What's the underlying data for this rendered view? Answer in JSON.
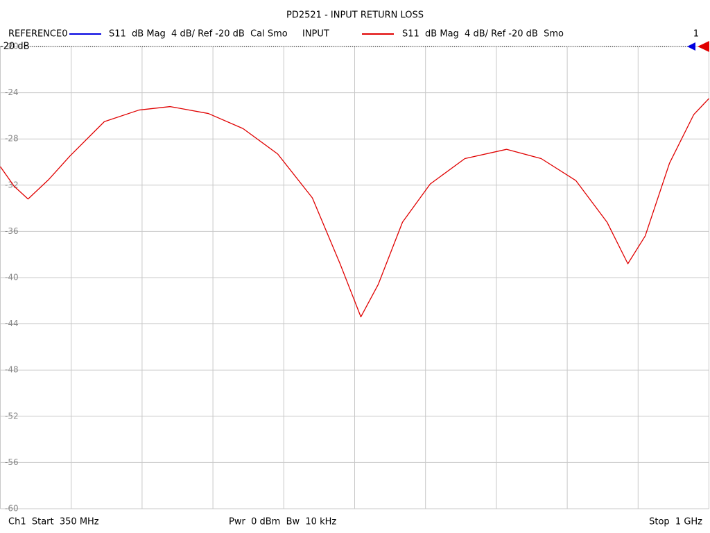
{
  "chart_data": {
    "type": "line",
    "title": "PD2521 - INPUT RETURN LOSS",
    "reference_trace": {
      "name": "REFERENCE0",
      "color": "#0000e0",
      "description": "S11  dB Mag  4 dB/ Ref -20 dB  Cal Smo"
    },
    "series": [
      {
        "name": "INPUT",
        "color": "#e00000",
        "description": "S11  dB Mag  4 dB/ Ref -20 dB  Smo",
        "values": [
          -30.4,
          -32.1,
          -33.2,
          -31.5,
          -29.5,
          -26.5,
          -25.5,
          -25.2,
          -25.8,
          -27.1,
          -29.3,
          -33.1,
          -38.8,
          -43.4,
          -40.6,
          -35.2,
          -31.9,
          -29.7,
          -28.9,
          -29.7,
          -31.6,
          -35.2,
          -38.8,
          -36.4,
          -30.1,
          -25.9,
          -24.5
        ]
      }
    ],
    "x": [
      350,
      362.7,
      375.4,
      394.5,
      413.6,
      445.4,
      477.2,
      505.8,
      540.8,
      572.6,
      604.4,
      636.2,
      661.6,
      680.7,
      696.6,
      718.9,
      744.3,
      776.1,
      814.3,
      846.1,
      877.9,
      906.5,
      925.6,
      941.5,
      963.8,
      986.0,
      1000
    ],
    "xlim": [
      350,
      1000
    ],
    "x_divisions": 10,
    "ylim": [
      -60,
      -20
    ],
    "yticks": [
      -20,
      -24,
      -28,
      -32,
      -36,
      -40,
      -44,
      -48,
      -52,
      -56,
      -60
    ],
    "grid": true,
    "reference_level_label": "-20 dB",
    "trace_number": "1",
    "footer": {
      "start": "Ch1  Start  350 MHz",
      "power": "Pwr  0 dBm  Bw  10 kHz",
      "stop": "Stop  1 GHz"
    }
  }
}
